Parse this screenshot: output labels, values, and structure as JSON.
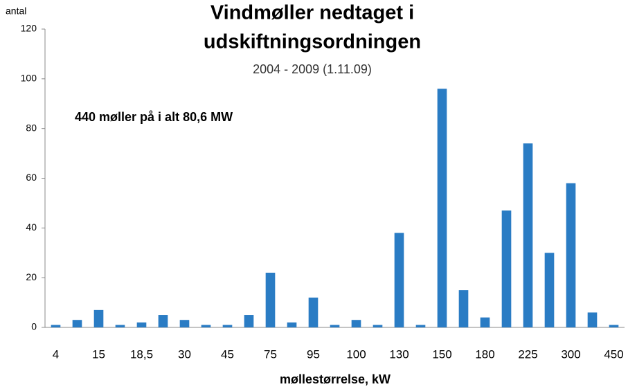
{
  "chart_data": {
    "type": "bar",
    "title": [
      "Vindmøller nedtaget i",
      "udskiftningsordningen"
    ],
    "subtitle": "2004 - 2009 (1.11.09)",
    "annotation": "440 møller på i alt 80,6 MW",
    "y_label": "antal",
    "x_label": "møllestørrelse, kW",
    "categories": [
      "4",
      null,
      "15",
      null,
      "18,5",
      null,
      "30",
      null,
      "45",
      null,
      "75",
      null,
      "95",
      null,
      "100",
      null,
      "130",
      null,
      "150",
      null,
      "180",
      null,
      "225",
      null,
      "300",
      null,
      "450"
    ],
    "values": [
      1,
      3,
      7,
      1,
      2,
      5,
      3,
      1,
      1,
      5,
      22,
      2,
      12,
      1,
      3,
      1,
      38,
      1,
      96,
      15,
      4,
      47,
      74,
      30,
      58,
      6,
      1
    ],
    "color": "#2a7cc4",
    "ylim": [
      0,
      120
    ],
    "yticks": [
      0,
      20,
      40,
      60,
      80,
      100,
      120
    ],
    "grid": false
  }
}
